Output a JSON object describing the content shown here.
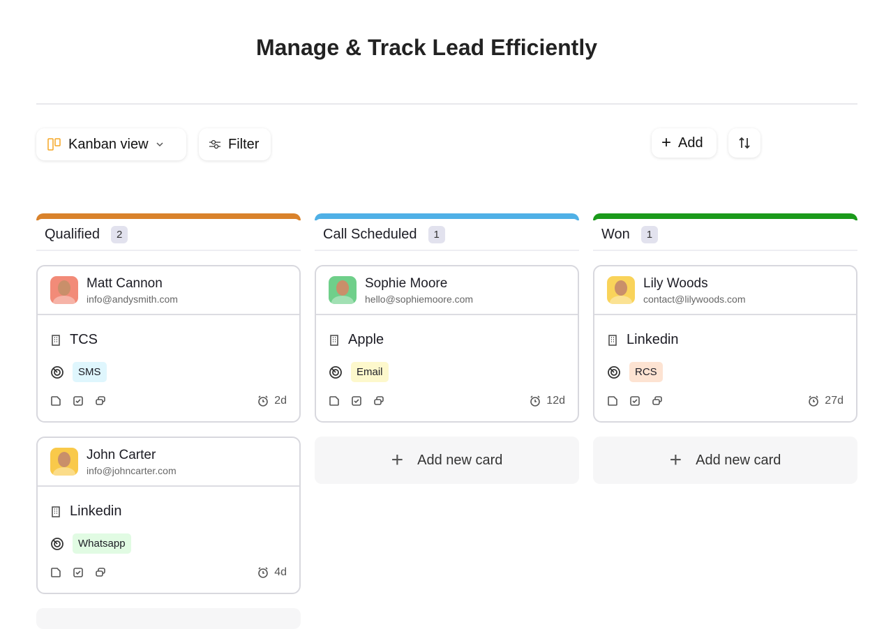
{
  "title": "Manage & Track Lead Efficiently",
  "toolbar": {
    "view_label": "Kanban view",
    "filter_label": "Filter",
    "add_label": "Add"
  },
  "colors": {
    "qualified": "#d9822b",
    "call_scheduled": "#4fb0e6",
    "won": "#1a9a1a"
  },
  "columns": [
    {
      "name": "Qualified",
      "count": "2",
      "color": "#d9822b",
      "cards": [
        {
          "name": "Matt Cannon",
          "email": "info@andysmith.com",
          "company": "TCS",
          "channel": "SMS",
          "age": "2d",
          "avatar_bg": "#f28b78",
          "tag_bg": "#dff6fd"
        },
        {
          "name": "John Carter",
          "email": "info@johncarter.com",
          "company": "Linkedin",
          "channel": "Whatsapp",
          "age": "4d",
          "avatar_bg": "#f9c94a",
          "tag_bg": "#e1fbe3"
        }
      ]
    },
    {
      "name": "Call Scheduled",
      "count": "1",
      "color": "#4fb0e6",
      "cards": [
        {
          "name": "Sophie Moore",
          "email": "hello@sophiemoore.com",
          "company": "Apple",
          "channel": "Email",
          "age": "12d",
          "avatar_bg": "#6fcf8a",
          "tag_bg": "#fdf8cc"
        }
      ],
      "add_label": "Add new card"
    },
    {
      "name": "Won",
      "count": "1",
      "color": "#1a9a1a",
      "cards": [
        {
          "name": "Lily Woods",
          "email": "contact@lilywoods.com",
          "company": "Linkedin",
          "channel": "RCS",
          "age": "27d",
          "avatar_bg": "#f9d35a",
          "tag_bg": "#fde3d2"
        }
      ],
      "add_label": "Add new card"
    }
  ]
}
